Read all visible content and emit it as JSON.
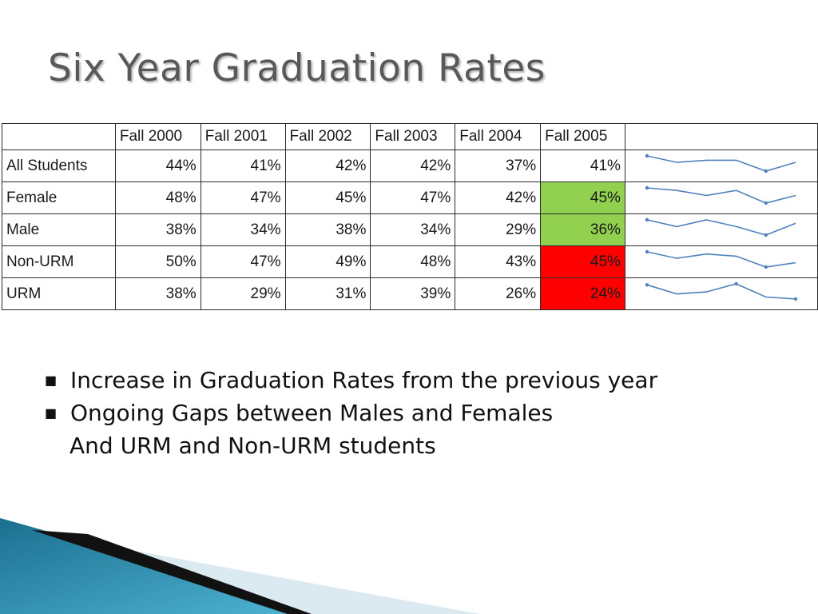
{
  "slide": {
    "title": "Six Year Graduation Rates"
  },
  "table": {
    "header_blank": "",
    "columns": [
      "Fall 2000",
      "Fall 2001",
      "Fall 2002",
      "Fall 2003",
      "Fall 2004",
      "Fall 2005"
    ],
    "rows": [
      {
        "label": "All Students",
        "values": [
          "44%",
          "41%",
          "42%",
          "42%",
          "37%",
          "41%"
        ],
        "trend": [
          44,
          41,
          42,
          42,
          37,
          41
        ],
        "highlight": null
      },
      {
        "label": "Female",
        "values": [
          "48%",
          "47%",
          "45%",
          "47%",
          "42%",
          "45%"
        ],
        "trend": [
          48,
          47,
          45,
          47,
          42,
          45
        ],
        "highlight": "#92d050"
      },
      {
        "label": "Male",
        "values": [
          "38%",
          "34%",
          "38%",
          "34%",
          "29%",
          "36%"
        ],
        "trend": [
          38,
          34,
          38,
          34,
          29,
          36
        ],
        "highlight": "#92d050"
      },
      {
        "label": "Non-URM",
        "values": [
          "50%",
          "47%",
          "49%",
          "48%",
          "43%",
          "45%"
        ],
        "trend": [
          50,
          47,
          49,
          48,
          43,
          45
        ],
        "highlight": "#ff0000"
      },
      {
        "label": "URM",
        "values": [
          "38%",
          "29%",
          "31%",
          "39%",
          "26%",
          "24%"
        ],
        "trend": [
          38,
          29,
          31,
          39,
          26,
          24
        ],
        "highlight": "#ff0000"
      }
    ],
    "sparkline_color": "#4f81bd"
  },
  "bullets": {
    "item1": "Increase in Graduation Rates from the previous year",
    "item2": "Ongoing Gaps between Males and Females",
    "item2_continued": "And URM and Non-URM students"
  },
  "decoration": {
    "teal_dark": "#1b6f8f",
    "teal_light": "#4fb3d2",
    "black_wedge": "#111111",
    "pale_band": "#dbe9f1"
  }
}
